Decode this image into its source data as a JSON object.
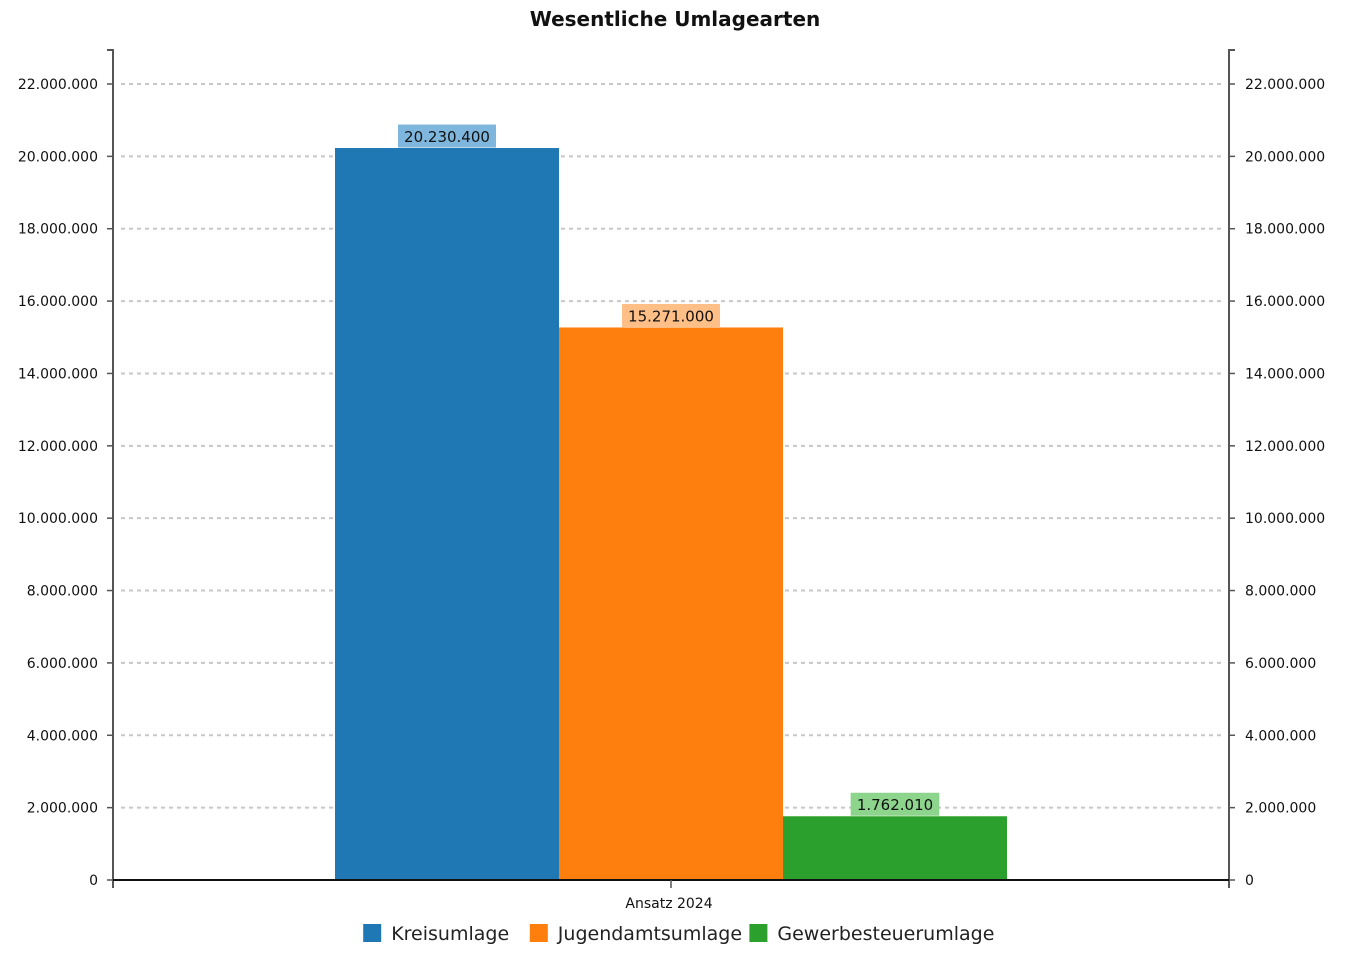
{
  "chart_data": {
    "type": "bar",
    "title": "Wesentliche Umlagearten",
    "categories": [
      "Ansatz 2024"
    ],
    "series": [
      {
        "name": "Kreisumlage",
        "values": [
          20230400
        ],
        "label": "20.230.400",
        "color": "#1f77b4",
        "label_bg": "#7fb6dd"
      },
      {
        "name": "Jugendamtsumlage",
        "values": [
          15271000
        ],
        "label": "15.271.000",
        "color": "#ff7f0e",
        "label_bg": "#ffbf86"
      },
      {
        "name": "Gewerbesteuerumlage",
        "values": [
          1762010
        ],
        "label": "1.762.010",
        "color": "#2ca02c",
        "label_bg": "#8dd48d"
      }
    ],
    "ylim": [
      0,
      22000000
    ],
    "y_ticks": [
      {
        "value": 0,
        "label": "0"
      },
      {
        "value": 2000000,
        "label": "2.000.000"
      },
      {
        "value": 4000000,
        "label": "4.000.000"
      },
      {
        "value": 6000000,
        "label": "6.000.000"
      },
      {
        "value": 8000000,
        "label": "8.000.000"
      },
      {
        "value": 10000000,
        "label": "10.000.000"
      },
      {
        "value": 12000000,
        "label": "12.000.000"
      },
      {
        "value": 14000000,
        "label": "14.000.000"
      },
      {
        "value": 16000000,
        "label": "16.000.000"
      },
      {
        "value": 18000000,
        "label": "18.000.000"
      },
      {
        "value": 20000000,
        "label": "20.000.000"
      },
      {
        "value": 22000000,
        "label": "22.000.000"
      }
    ],
    "grid": true,
    "right_axis_mirror": true,
    "legend": "bottom"
  }
}
